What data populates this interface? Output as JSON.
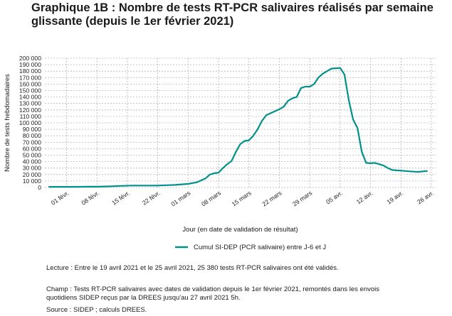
{
  "title": "Graphique 1B : Nombre de tests RT-PCR salivaires réalisés par semaine glissante (depuis le 1er février 2021)",
  "notes": {
    "lecture": "Lecture : Entre le 19 avril 2021 et le 25 avril 2021, 25 380 tests RT-PCR salivaires ont été validés.",
    "champ": "Champ : Tests RT-PCR salivaires avec dates de validation depuis le 1er février 2021, remontés dans les envois\nquotidiens SIDEP reçus par la DREES jusqu'au 27 avril 2021 5h.",
    "source": "Source : SIDEP ; calculs DREES."
  },
  "chart_data": {
    "type": "line",
    "xlabel": "Jour (en date de validation de résultat)",
    "ylabel": "Nombre de tests hebdomadaires",
    "ylim": [
      0,
      200000
    ],
    "yticks": [
      0,
      10000,
      20000,
      30000,
      40000,
      50000,
      60000,
      70000,
      80000,
      90000,
      100000,
      110000,
      120000,
      130000,
      140000,
      150000,
      160000,
      170000,
      180000,
      190000,
      200000
    ],
    "ytick_labels": [
      "0",
      "10 000",
      "20 000",
      "30 000",
      "40 000",
      "50 000",
      "60 000",
      "70 000",
      "80 000",
      "90 000",
      "100 000",
      "110 000",
      "120 000",
      "130 000",
      "140 000",
      "150 000",
      "160 000",
      "170 000",
      "180 000",
      "190 000",
      "200 000"
    ],
    "xlim": [
      "2021-01-27",
      "2021-04-27"
    ],
    "xticks": [
      "2021-02-01",
      "2021-02-08",
      "2021-02-15",
      "2021-02-22",
      "2021-03-01",
      "2021-03-08",
      "2021-03-15",
      "2021-03-22",
      "2021-03-29",
      "2021-04-05",
      "2021-04-12",
      "2021-04-19",
      "2021-04-26"
    ],
    "xtick_labels": [
      "01 févr.",
      "08 févr.",
      "15 févr.",
      "22 févr.",
      "01 mars",
      "08 mars",
      "15 mars",
      "22 mars",
      "29 mars",
      "05 avr.",
      "12 avr.",
      "19 avr.",
      "26 avr."
    ],
    "grid": true,
    "legend_position": "bottom",
    "series": [
      {
        "name": "Cumul SI-DEP (PCR salivaire) entre J-6 et J",
        "color": "#00918a",
        "x": [
          "2021-01-28",
          "2021-01-31",
          "2021-02-03",
          "2021-02-06",
          "2021-02-08",
          "2021-02-10",
          "2021-02-12",
          "2021-02-14",
          "2021-02-16",
          "2021-02-18",
          "2021-02-20",
          "2021-02-22",
          "2021-02-24",
          "2021-02-26",
          "2021-02-28",
          "2021-03-01",
          "2021-03-03",
          "2021-03-05",
          "2021-03-06",
          "2021-03-07",
          "2021-03-08",
          "2021-03-09",
          "2021-03-10",
          "2021-03-11",
          "2021-03-12",
          "2021-03-13",
          "2021-03-14",
          "2021-03-15",
          "2021-03-16",
          "2021-03-17",
          "2021-03-18",
          "2021-03-19",
          "2021-03-20",
          "2021-03-21",
          "2021-03-22",
          "2021-03-23",
          "2021-03-24",
          "2021-03-25",
          "2021-03-26",
          "2021-03-27",
          "2021-03-28",
          "2021-03-29",
          "2021-03-30",
          "2021-03-31",
          "2021-04-01",
          "2021-04-02",
          "2021-04-03",
          "2021-04-04",
          "2021-04-05",
          "2021-04-06",
          "2021-04-07",
          "2021-04-08",
          "2021-04-09",
          "2021-04-10",
          "2021-04-11",
          "2021-04-12",
          "2021-04-13",
          "2021-04-14",
          "2021-04-15",
          "2021-04-16",
          "2021-04-17",
          "2021-04-18",
          "2021-04-19",
          "2021-04-20",
          "2021-04-21",
          "2021-04-22",
          "2021-04-23",
          "2021-04-24",
          "2021-04-25"
        ],
        "y": [
          1000,
          1000,
          1000,
          1200,
          1200,
          1500,
          2000,
          2500,
          3000,
          3000,
          3000,
          3000,
          3500,
          4000,
          5000,
          5500,
          8000,
          14000,
          20000,
          22000,
          23000,
          30000,
          36000,
          41000,
          55000,
          67000,
          72000,
          73000,
          80000,
          90000,
          103000,
          112000,
          115000,
          118000,
          121000,
          125000,
          134000,
          138000,
          140000,
          154000,
          156000,
          156000,
          160000,
          170000,
          176000,
          180000,
          184000,
          184500,
          185000,
          175000,
          135000,
          105000,
          92000,
          55000,
          38000,
          37500,
          38000,
          36000,
          34000,
          30000,
          27000,
          26500,
          26000,
          25500,
          25000,
          24500,
          24000,
          25000,
          25380
        ]
      }
    ]
  }
}
